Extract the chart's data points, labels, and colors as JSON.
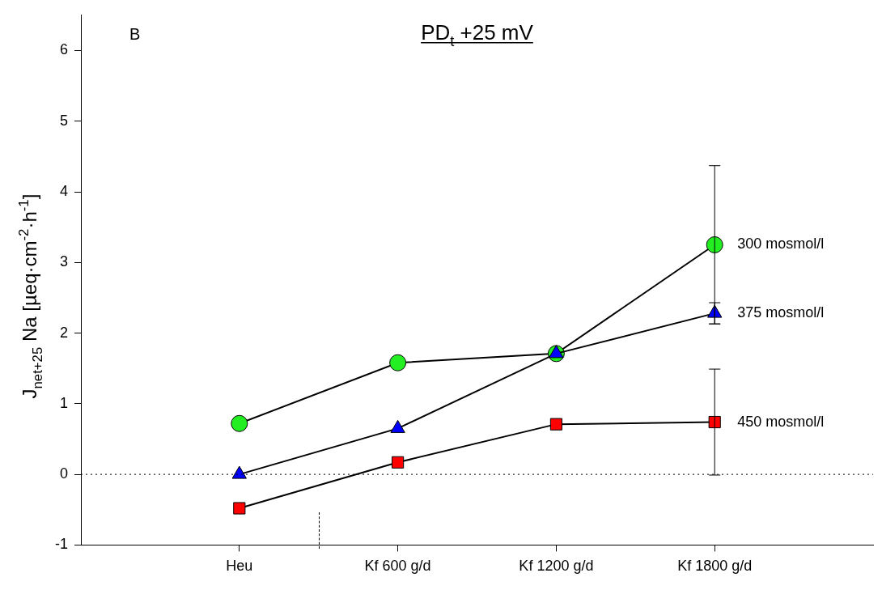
{
  "chart_data": {
    "type": "line",
    "title": "PD$_{t}$ +25 mV",
    "ylabel": "J$_{net+25}$ Na [µeq·cm$^{-2}$·h$^{-1}$]",
    "annotations": [
      "B"
    ],
    "categories": [
      "Heu",
      "Kf 600 g/d",
      "Kf 1200 g/d",
      "Kf 1800 g/d"
    ],
    "series": [
      {
        "name": "300 mosmol/l",
        "color": "#22ee22",
        "marker": "circle",
        "values": [
          0.72,
          1.58,
          1.71,
          3.25
        ],
        "errors": [
          null,
          null,
          null,
          1.12
        ]
      },
      {
        "name": "375 mosmol/l",
        "color": "#0000ff",
        "marker": "triangle",
        "values": [
          0.0,
          0.65,
          1.71,
          2.28
        ],
        "errors": [
          null,
          null,
          null,
          0.15
        ]
      },
      {
        "name": "450 mosmol/l",
        "color": "#ff0000",
        "marker": "square",
        "values": [
          -0.48,
          0.17,
          0.71,
          0.74
        ],
        "errors": [
          null,
          null,
          null,
          0.75
        ]
      }
    ],
    "ylim": [
      -1,
      6.5
    ],
    "yticks": [
      -1,
      0,
      1,
      2,
      3,
      4,
      5,
      6
    ],
    "grid": false,
    "legend": false,
    "ref_lines": [
      {
        "axis": "y",
        "value": 0,
        "line_style": "dotted"
      }
    ]
  }
}
